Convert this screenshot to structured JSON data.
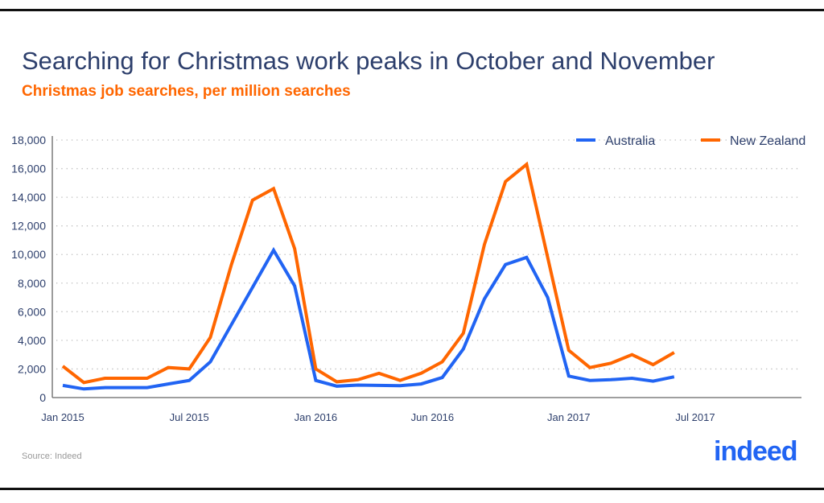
{
  "title": "Searching for Christmas work peaks in October and November",
  "subtitle": "Christmas job searches, per million searches",
  "source": "Source: Indeed",
  "logo": "indeed",
  "colors": {
    "australia": "#2164f3",
    "new_zealand": "#ff6600",
    "title": "#2d3f6c"
  },
  "chart_data": {
    "type": "line",
    "title": "Searching for Christmas work peaks in October and November",
    "subtitle": "Christmas job searches, per million searches",
    "xlabel": "",
    "ylabel": "",
    "x": [
      "Jan 2015",
      "Feb 2015",
      "Mar 2015",
      "Apr 2015",
      "May 2015",
      "Jun 2015",
      "Jul 2015",
      "Aug 2015",
      "Sep 2015",
      "Oct 2015",
      "Nov 2015",
      "Dec 2015",
      "Jan 2016",
      "Feb 2016",
      "Mar 2016",
      "Apr 2016",
      "May 2016",
      "Jun 2016",
      "Jul 2016",
      "Aug 2016",
      "Sep 2016",
      "Oct 2016",
      "Nov 2016",
      "Dec 2016",
      "Jan 2017",
      "Feb 2017",
      "Mar 2017",
      "Apr 2017",
      "May 2017",
      "Jun 2017"
    ],
    "series": [
      {
        "name": "Australia",
        "color": "#2164f3",
        "values": [
          850,
          600,
          700,
          700,
          700,
          950,
          1200,
          2500,
          5100,
          7700,
          10300,
          7800,
          1200,
          800,
          870,
          850,
          830,
          950,
          1400,
          3400,
          6900,
          9300,
          9800,
          7000,
          1500,
          1200,
          1250,
          1350,
          1150,
          1450
        ]
      },
      {
        "name": "New Zealand",
        "color": "#ff6600",
        "values": [
          2200,
          1050,
          1350,
          1350,
          1350,
          2100,
          2000,
          4200,
          9300,
          13800,
          14600,
          10400,
          2000,
          1100,
          1250,
          1700,
          1200,
          1700,
          2500,
          4500,
          10700,
          15100,
          16300,
          9800,
          3300,
          2100,
          2400,
          3000,
          2300,
          3150
        ]
      }
    ],
    "xticks": [
      {
        "label": "Jan 2015",
        "index": 0
      },
      {
        "label": "Jul 2015",
        "index": 6
      },
      {
        "label": "Jan 2016",
        "index": 12
      },
      {
        "label": "Jun 2016",
        "index": 17
      },
      {
        "label": "Jan 2017",
        "index": 24
      },
      {
        "label": "Jul 2017",
        "index": 30
      }
    ],
    "yticks": [
      "0",
      "2,000",
      "4,000",
      "6,000",
      "8,000",
      "10,000",
      "12,000",
      "14,000",
      "16,000",
      "18,000"
    ],
    "ylim": [
      0,
      18000
    ],
    "grid": true,
    "legend": "top-right"
  }
}
